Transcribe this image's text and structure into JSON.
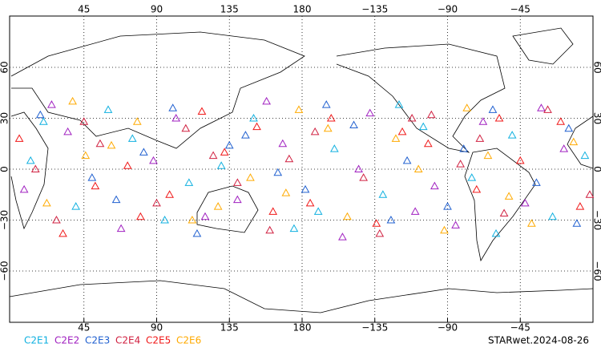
{
  "chart_data": {
    "type": "scatter",
    "title": "STARwet.2024-08-26",
    "xlim": [
      0,
      360
    ],
    "ylim": [
      -90,
      90
    ],
    "xticks": [
      45,
      90,
      135,
      180,
      {
        "value": 225,
        "label": "−135"
      },
      {
        "value": 270,
        "label": "−90"
      },
      {
        "value": 315,
        "label": "−45"
      }
    ],
    "yticks": [
      {
        "value": -60,
        "label": "−60"
      },
      {
        "value": -30,
        "label": "−30"
      },
      0,
      30,
      60
    ],
    "grid": true,
    "series": [
      {
        "name": "C2E1",
        "color": "#10b0e0",
        "x": [
          12,
          40,
          75,
          110,
          150,
          175,
          200,
          230,
          255,
          285,
          310,
          335,
          355,
          60,
          95,
          130,
          190,
          240,
          300,
          20
        ],
        "values": [
          5,
          -22,
          18,
          -8,
          30,
          -35,
          12,
          -15,
          25,
          -5,
          20,
          -28,
          8,
          35,
          -30,
          2,
          -25,
          38,
          -38,
          28
        ]
      },
      {
        "name": "C2E2",
        "color": "#a020c0",
        "x": [
          8,
          35,
          68,
          102,
          140,
          168,
          205,
          222,
          262,
          292,
          318,
          342,
          25,
          88,
          120,
          158,
          215,
          275,
          328,
          250
        ],
        "values": [
          -12,
          22,
          -35,
          30,
          -18,
          15,
          -40,
          33,
          -10,
          28,
          -20,
          12,
          38,
          5,
          -28,
          40,
          0,
          -33,
          36,
          -25
        ]
      },
      {
        "name": "C2E3",
        "color": "#2060d0",
        "x": [
          18,
          50,
          82,
          115,
          145,
          182,
          212,
          245,
          270,
          298,
          325,
          350,
          65,
          135,
          195,
          235,
          280,
          345,
          100,
          165
        ],
        "values": [
          32,
          -5,
          10,
          -38,
          20,
          -12,
          26,
          5,
          -22,
          35,
          -8,
          -32,
          -18,
          14,
          38,
          -30,
          12,
          24,
          36,
          -2
        ]
      },
      {
        "name": "C2E4",
        "color": "#d02040",
        "x": [
          28,
          55,
          90,
          125,
          160,
          188,
          218,
          248,
          278,
          305,
          332,
          358,
          45,
          108,
          172,
          228,
          290,
          15,
          140,
          260
        ],
        "values": [
          -30,
          15,
          -20,
          8,
          -36,
          22,
          -5,
          30,
          3,
          -26,
          35,
          -15,
          28,
          24,
          6,
          -38,
          18,
          0,
          -8,
          32
        ]
      },
      {
        "name": "C2E5",
        "color": "#f01818",
        "x": [
          5,
          32,
          72,
          98,
          132,
          162,
          198,
          226,
          258,
          288,
          315,
          340,
          52,
          118,
          185,
          242,
          302,
          80,
          152,
          352
        ],
        "values": [
          18,
          -38,
          2,
          -15,
          10,
          -25,
          30,
          -32,
          15,
          -12,
          5,
          28,
          -10,
          34,
          -20,
          22,
          30,
          -28,
          25,
          -22
        ]
      },
      {
        "name": "C2E6",
        "color": "#ffaa00",
        "x": [
          22,
          46,
          78,
          112,
          148,
          178,
          208,
          238,
          268,
          295,
          322,
          348,
          62,
          128,
          196,
          252,
          308,
          38,
          170,
          282
        ],
        "values": [
          -20,
          8,
          28,
          -30,
          -5,
          35,
          -28,
          18,
          -36,
          8,
          -32,
          16,
          14,
          -22,
          24,
          0,
          -16,
          40,
          -14,
          36
        ]
      }
    ]
  }
}
